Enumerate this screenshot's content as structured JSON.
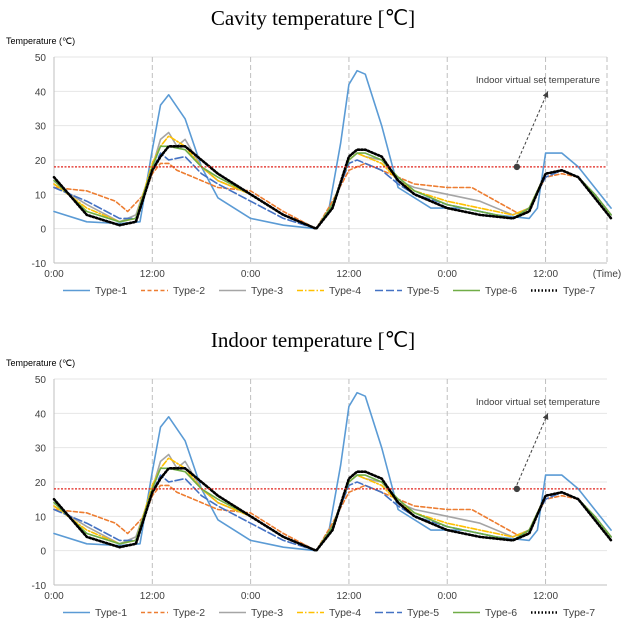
{
  "chart_data": [
    {
      "type": "line",
      "title": "Cavity temperature [℃]",
      "ylabel": "Temperature (℃)",
      "xlabel": "",
      "ylim": [
        -10,
        50
      ],
      "yticks": [
        "-10",
        "0",
        "10",
        "20",
        "30",
        "40",
        "50"
      ],
      "xlim": [
        0,
        67.5
      ],
      "xticks": [
        {
          "x": 0,
          "label": "0:00"
        },
        {
          "x": 12,
          "label": "12:00"
        },
        {
          "x": 24,
          "label": "0:00"
        },
        {
          "x": 36,
          "label": "12:00"
        },
        {
          "x": 48,
          "label": "0:00"
        },
        {
          "x": 60,
          "label": "12:00"
        },
        {
          "x": 67.5,
          "label": "(Time)"
        }
      ],
      "grid": "vertical-dashed",
      "legend": "bottom",
      "reference_line": {
        "value": 18,
        "color": "#e0221a"
      },
      "annotation": {
        "text": "Indoor virtual set temperature",
        "point": [
          56.5,
          18
        ]
      },
      "series": [
        {
          "name": "Type-1",
          "color": "#5b9bd5",
          "style": "solid",
          "x": [
            0,
            4,
            8,
            10.5,
            12,
            13,
            14,
            16,
            18,
            20,
            24,
            28,
            32,
            33.5,
            35,
            36,
            37,
            38,
            40,
            42,
            46,
            50,
            54,
            58,
            59,
            60,
            62,
            64,
            66,
            68
          ],
          "y": [
            5,
            2,
            1.5,
            2,
            23,
            36,
            39,
            32,
            18,
            9,
            3,
            1,
            0,
            5,
            25,
            42,
            46,
            45,
            30,
            12,
            6,
            6,
            4,
            3,
            6,
            22,
            22,
            18,
            12,
            6
          ]
        },
        {
          "name": "Type-2",
          "color": "#ed7d31",
          "style": "dashed",
          "x": [
            0,
            4,
            7.5,
            9,
            11,
            12,
            13,
            14,
            15,
            16,
            18,
            20,
            24,
            28,
            32,
            34,
            36,
            38,
            40,
            42,
            44,
            48,
            51,
            54,
            57,
            58,
            60,
            62,
            64,
            66,
            68
          ],
          "y": [
            12,
            11,
            8,
            5,
            10,
            16,
            19,
            19,
            17,
            16,
            14,
            12,
            11,
            5,
            0,
            8,
            17,
            19,
            17,
            15,
            13,
            12,
            12,
            8,
            4,
            6,
            15,
            16,
            15,
            10,
            4
          ]
        },
        {
          "name": "Type-3",
          "color": "#a5a5a5",
          "style": "solid",
          "x": [
            0,
            4,
            8,
            10,
            12,
            13,
            14,
            15,
            16,
            18,
            20,
            24,
            28,
            32,
            34,
            36,
            37,
            38,
            40,
            42,
            44,
            48,
            52,
            56,
            58,
            60,
            62,
            64,
            66,
            68
          ],
          "y": [
            13,
            7,
            2,
            4,
            18,
            26,
            28,
            24,
            26,
            18,
            14,
            10,
            4,
            0,
            6,
            20,
            22,
            21,
            20,
            14,
            12,
            10,
            8,
            4,
            6,
            16,
            17,
            15,
            10,
            4
          ]
        },
        {
          "name": "Type-4",
          "color": "#ffc000",
          "style": "dashdot",
          "x": [
            0,
            4,
            8,
            10,
            12,
            13,
            14,
            16,
            18,
            20,
            24,
            28,
            32,
            34,
            36,
            37,
            38,
            40,
            42,
            44,
            48,
            52,
            56,
            58,
            60,
            62,
            64,
            66,
            68
          ],
          "y": [
            13,
            6,
            2,
            3,
            19,
            24,
            27,
            24,
            18,
            14,
            10,
            4,
            0,
            7,
            20,
            22,
            21,
            19,
            14,
            11,
            8,
            6,
            4,
            6,
            16,
            17,
            15,
            10,
            4
          ]
        },
        {
          "name": "Type-5",
          "color": "#4472c4",
          "style": "longdash",
          "x": [
            0,
            4,
            8,
            10,
            12,
            13,
            14,
            16,
            18,
            20,
            24,
            28,
            32,
            34,
            36,
            37,
            38,
            40,
            42,
            44,
            48,
            52,
            56,
            58,
            60,
            62,
            64,
            66,
            68
          ],
          "y": [
            12,
            8,
            3,
            3,
            17,
            22,
            20,
            21,
            16,
            13,
            8,
            3,
            0,
            7,
            19,
            20,
            19,
            17,
            13,
            10,
            7,
            5,
            3,
            6,
            15,
            17,
            15,
            10,
            4
          ]
        },
        {
          "name": "Type-6",
          "color": "#70ad47",
          "style": "solid",
          "x": [
            0,
            4,
            8,
            10,
            12,
            13,
            14,
            16,
            18,
            20,
            24,
            28,
            32,
            34,
            36,
            37,
            38,
            40,
            42,
            44,
            48,
            52,
            56,
            58,
            60,
            62,
            64,
            66,
            68
          ],
          "y": [
            14,
            5,
            2,
            3,
            18,
            24,
            24,
            23,
            18,
            15,
            10,
            4,
            0,
            7,
            20,
            22,
            22,
            20,
            15,
            11,
            7,
            5,
            3,
            6,
            16,
            17,
            15,
            10,
            4
          ]
        },
        {
          "name": "Type-7",
          "color": "#000000",
          "style": "dotted",
          "x": [
            0,
            4,
            8,
            10,
            12,
            13,
            14,
            16,
            18,
            20,
            24,
            28,
            32,
            34,
            36,
            37,
            38,
            40,
            42,
            44,
            48,
            52,
            56,
            58,
            60,
            62,
            64,
            66,
            68
          ],
          "y": [
            15,
            4,
            1,
            2,
            17,
            21,
            24,
            24,
            20,
            16,
            10,
            4,
            0,
            6,
            21,
            23,
            23,
            21,
            14,
            10,
            6,
            4,
            3,
            5,
            16,
            17,
            15,
            9,
            3
          ]
        }
      ]
    },
    {
      "type": "line",
      "title": "Indoor temperature [℃]",
      "ylabel": "Temperature (℃)",
      "xlabel": "",
      "ylim": [
        -10,
        50
      ],
      "yticks": [
        "-10",
        "0",
        "10",
        "20",
        "30",
        "40",
        "50"
      ],
      "xlim": [
        0,
        67.5
      ],
      "xticks": [
        {
          "x": 0,
          "label": "0:00"
        },
        {
          "x": 12,
          "label": "12:00"
        },
        {
          "x": 24,
          "label": "0:00"
        },
        {
          "x": 36,
          "label": "12:00"
        },
        {
          "x": 48,
          "label": "0:00"
        },
        {
          "x": 60,
          "label": "12:00"
        }
      ],
      "grid": "vertical-dashed",
      "legend": "bottom",
      "reference_line": {
        "value": 18,
        "color": "#e0221a"
      },
      "annotation": {
        "text": "Indoor virtual set temperature",
        "point": [
          56.5,
          18
        ]
      },
      "series": [
        {
          "name": "Type-1",
          "color": "#5b9bd5",
          "style": "solid",
          "x": [
            0,
            4,
            8,
            10.5,
            12,
            13,
            14,
            16,
            18,
            20,
            24,
            28,
            32,
            33.5,
            35,
            36,
            37,
            38,
            40,
            42,
            46,
            50,
            54,
            58,
            59,
            60,
            62,
            64,
            66,
            68
          ],
          "y": [
            5,
            2,
            1.5,
            2,
            23,
            36,
            39,
            32,
            18,
            9,
            3,
            1,
            0,
            5,
            25,
            42,
            46,
            45,
            30,
            12,
            6,
            6,
            4,
            3,
            6,
            22,
            22,
            18,
            12,
            6
          ]
        },
        {
          "name": "Type-2",
          "color": "#ed7d31",
          "style": "dashed",
          "x": [
            0,
            4,
            7.5,
            9,
            11,
            12,
            13,
            14,
            15,
            16,
            18,
            20,
            24,
            28,
            32,
            34,
            36,
            38,
            40,
            42,
            44,
            48,
            51,
            54,
            57,
            58,
            60,
            62,
            64,
            66,
            68
          ],
          "y": [
            12,
            11,
            8,
            5,
            10,
            16,
            19,
            19,
            17,
            16,
            14,
            12,
            11,
            5,
            0,
            8,
            17,
            19,
            17,
            15,
            13,
            12,
            12,
            8,
            4,
            6,
            15,
            16,
            15,
            10,
            4
          ]
        },
        {
          "name": "Type-3",
          "color": "#a5a5a5",
          "style": "solid",
          "x": [
            0,
            4,
            8,
            10,
            12,
            13,
            14,
            15,
            16,
            18,
            20,
            24,
            28,
            32,
            34,
            36,
            37,
            38,
            40,
            42,
            44,
            48,
            52,
            56,
            58,
            60,
            62,
            64,
            66,
            68
          ],
          "y": [
            13,
            7,
            2,
            4,
            18,
            26,
            28,
            24,
            26,
            18,
            14,
            10,
            4,
            0,
            6,
            20,
            22,
            21,
            20,
            14,
            12,
            10,
            8,
            4,
            6,
            16,
            17,
            15,
            10,
            4
          ]
        },
        {
          "name": "Type-4",
          "color": "#ffc000",
          "style": "dashdot",
          "x": [
            0,
            4,
            8,
            10,
            12,
            13,
            14,
            16,
            18,
            20,
            24,
            28,
            32,
            34,
            36,
            37,
            38,
            40,
            42,
            44,
            48,
            52,
            56,
            58,
            60,
            62,
            64,
            66,
            68
          ],
          "y": [
            13,
            6,
            2,
            3,
            19,
            24,
            27,
            24,
            18,
            14,
            10,
            4,
            0,
            7,
            20,
            22,
            21,
            19,
            14,
            11,
            8,
            6,
            4,
            6,
            16,
            17,
            15,
            10,
            4
          ]
        },
        {
          "name": "Type-5",
          "color": "#4472c4",
          "style": "longdash",
          "x": [
            0,
            4,
            8,
            10,
            12,
            13,
            14,
            16,
            18,
            20,
            24,
            28,
            32,
            34,
            36,
            37,
            38,
            40,
            42,
            44,
            48,
            52,
            56,
            58,
            60,
            62,
            64,
            66,
            68
          ],
          "y": [
            12,
            8,
            3,
            3,
            17,
            22,
            20,
            21,
            16,
            13,
            8,
            3,
            0,
            7,
            19,
            20,
            19,
            17,
            13,
            10,
            7,
            5,
            3,
            6,
            15,
            17,
            15,
            10,
            4
          ]
        },
        {
          "name": "Type-6",
          "color": "#70ad47",
          "style": "solid",
          "x": [
            0,
            4,
            8,
            10,
            12,
            13,
            14,
            16,
            18,
            20,
            24,
            28,
            32,
            34,
            36,
            37,
            38,
            40,
            42,
            44,
            48,
            52,
            56,
            58,
            60,
            62,
            64,
            66,
            68
          ],
          "y": [
            14,
            5,
            2,
            3,
            18,
            24,
            24,
            23,
            18,
            15,
            10,
            4,
            0,
            7,
            20,
            22,
            22,
            20,
            15,
            11,
            7,
            5,
            3,
            6,
            16,
            17,
            15,
            10,
            4
          ]
        },
        {
          "name": "Type-7",
          "color": "#000000",
          "style": "dotted",
          "x": [
            0,
            4,
            8,
            10,
            12,
            13,
            14,
            16,
            18,
            20,
            24,
            28,
            32,
            34,
            36,
            37,
            38,
            40,
            42,
            44,
            48,
            52,
            56,
            58,
            60,
            62,
            64,
            66,
            68
          ],
          "y": [
            15,
            4,
            1,
            2,
            17,
            21,
            24,
            24,
            20,
            16,
            10,
            4,
            0,
            6,
            21,
            23,
            23,
            21,
            14,
            10,
            6,
            4,
            3,
            5,
            16,
            17,
            15,
            9,
            3
          ]
        }
      ]
    }
  ]
}
